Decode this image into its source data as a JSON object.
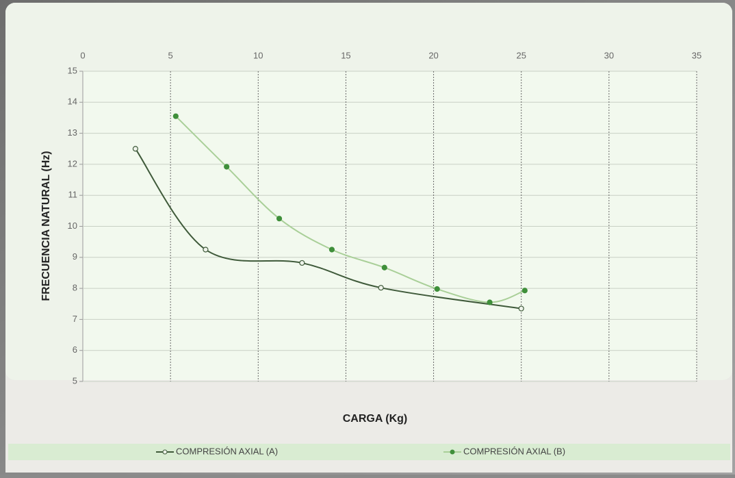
{
  "chart_data": {
    "type": "line",
    "x_label": "CARGA (Kg)",
    "y_label": "FRECUENCIA NATURAL (Hz)",
    "xlim": [
      0,
      35
    ],
    "xticks": [
      0,
      5,
      10,
      15,
      20,
      25,
      30,
      35
    ],
    "ylim": [
      5,
      15
    ],
    "yticks": [
      5,
      6,
      7,
      8,
      9,
      10,
      11,
      12,
      13,
      14,
      15
    ],
    "grid": true,
    "legend": "bottom",
    "series": [
      {
        "name": "COMPRESIÓN AXIAL (A)",
        "color": "#3f5a3a",
        "marker": "open",
        "x": [
          3,
          7,
          12.5,
          17,
          25
        ],
        "values": [
          12.5,
          9.25,
          8.82,
          8.02,
          7.35
        ]
      },
      {
        "name": "COMPRESIÓN AXIAL (B)",
        "color": "#a9cf98",
        "marker": "filled",
        "x": [
          5.3,
          8.2,
          11.2,
          14.2,
          17.2,
          20.2,
          23.2,
          25.2
        ],
        "values": [
          13.55,
          11.92,
          10.25,
          9.25,
          8.67,
          7.98,
          7.55,
          7.93
        ]
      }
    ]
  }
}
